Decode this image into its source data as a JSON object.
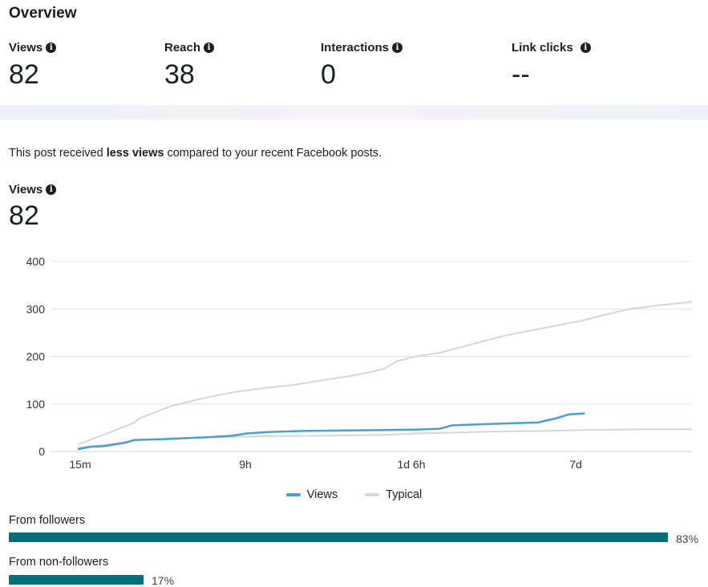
{
  "overview": {
    "title": "Overview",
    "metrics": [
      {
        "label": "Views",
        "value": "82"
      },
      {
        "label": "Reach",
        "value": "38"
      },
      {
        "label": "Interactions",
        "value": "0"
      },
      {
        "label": "Link clicks",
        "value": "--"
      }
    ]
  },
  "comparison": {
    "prefix": "This post received ",
    "emphasis": "less views",
    "suffix": " compared to your recent Facebook posts."
  },
  "views_section": {
    "label": "Views",
    "value": "82"
  },
  "chart_data": {
    "type": "line",
    "yticks": [
      0,
      100,
      200,
      300,
      400
    ],
    "ylim": [
      0,
      400
    ],
    "xtick_labels": [
      "15m",
      "9h",
      "1d 6h",
      "7d"
    ],
    "grid": true,
    "legend_position": "bottom-center",
    "series": [
      {
        "name": "Views",
        "color": "#4a9fcf",
        "points": [
          [
            0,
            5
          ],
          [
            4,
            10
          ],
          [
            8,
            11
          ],
          [
            12,
            15
          ],
          [
            15,
            18
          ],
          [
            18,
            24
          ],
          [
            22,
            25
          ],
          [
            28,
            26
          ],
          [
            35,
            28
          ],
          [
            42,
            30
          ],
          [
            50,
            33
          ],
          [
            55,
            38
          ],
          [
            62,
            41
          ],
          [
            72,
            43
          ],
          [
            85,
            44
          ],
          [
            100,
            45
          ],
          [
            110,
            46
          ],
          [
            118,
            48
          ],
          [
            122,
            55
          ],
          [
            130,
            57
          ],
          [
            140,
            59
          ],
          [
            150,
            61
          ],
          [
            156,
            70
          ],
          [
            160,
            78
          ],
          [
            165,
            80
          ]
        ]
      },
      {
        "name": "Typical",
        "color": "#d6d6d6",
        "points": [
          [
            0,
            15
          ],
          [
            8,
            35
          ],
          [
            14,
            50
          ],
          [
            18,
            60
          ],
          [
            20,
            70
          ],
          [
            24,
            80
          ],
          [
            30,
            95
          ],
          [
            38,
            108
          ],
          [
            45,
            118
          ],
          [
            52,
            126
          ],
          [
            60,
            133
          ],
          [
            70,
            140
          ],
          [
            78,
            148
          ],
          [
            88,
            158
          ],
          [
            96,
            168
          ],
          [
            100,
            175
          ],
          [
            104,
            190
          ],
          [
            110,
            200
          ],
          [
            118,
            208
          ],
          [
            124,
            218
          ],
          [
            132,
            232
          ],
          [
            140,
            245
          ],
          [
            148,
            255
          ],
          [
            156,
            265
          ],
          [
            164,
            275
          ],
          [
            172,
            288
          ],
          [
            180,
            300
          ],
          [
            190,
            308
          ],
          [
            200,
            315
          ]
        ]
      },
      {
        "name": "",
        "color": "#d6d6d6",
        "points": [
          [
            0,
            8
          ],
          [
            5,
            12
          ],
          [
            10,
            15
          ],
          [
            15,
            20
          ],
          [
            20,
            24
          ],
          [
            30,
            27
          ],
          [
            45,
            30
          ],
          [
            60,
            32
          ],
          [
            80,
            33
          ],
          [
            100,
            35
          ],
          [
            110,
            38
          ],
          [
            125,
            40
          ],
          [
            135,
            42
          ],
          [
            150,
            43
          ],
          [
            165,
            45
          ],
          [
            185,
            47
          ],
          [
            200,
            47
          ]
        ]
      }
    ]
  },
  "distribution": [
    {
      "label": "From followers",
      "percent": 83,
      "percent_text": "83%"
    },
    {
      "label": "From non-followers",
      "percent": 17,
      "percent_text": "17%"
    }
  ]
}
